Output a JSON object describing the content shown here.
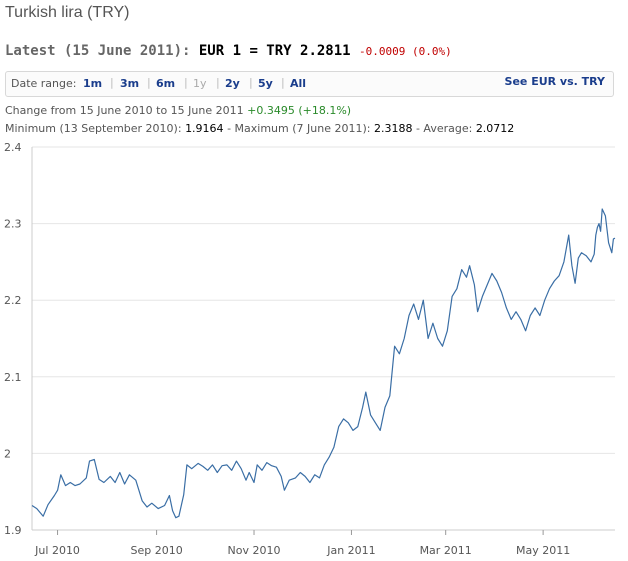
{
  "header": {
    "title": "Turkish lira (TRY)",
    "latest_prefix": "Latest (15 June 2011):",
    "latest_pair": "EUR 1 = TRY 2.2811",
    "latest_delta": "-0.0009 (0.0%)"
  },
  "range": {
    "label": "Date range:",
    "buttons": [
      "1m",
      "3m",
      "6m",
      "1y",
      "2y",
      "5y",
      "All"
    ],
    "disabled": "1y",
    "link": "See EUR vs. TRY"
  },
  "stats": {
    "change_label": "Change from 15 June 2010 to 15 June 2011",
    "change_value": "+0.3495 (+18.1%)",
    "min_label": "Minimum (13 September 2010):",
    "min_value": "1.9164",
    "max_label": "- Maximum (7 June 2011):",
    "max_value": "2.3188",
    "avg_label": "- Average:",
    "avg_value": "2.0712"
  },
  "colors": {
    "line": "#3a6ea5",
    "grid": "#e6e6e6",
    "positive": "#2a8a2a",
    "negative": "#c00000",
    "link": "#1a3d8c"
  },
  "chart_data": {
    "type": "line",
    "title": "",
    "xlabel": "",
    "ylabel": "",
    "ylim": [
      1.9,
      2.4
    ],
    "yticks": [
      "1.9",
      "2",
      "2.1",
      "2.2",
      "2.3",
      "2.4"
    ],
    "xticks": [
      "Jul 2010",
      "Sep 2010",
      "Nov 2010",
      "Jan 2011",
      "Mar 2011",
      "May 2011"
    ],
    "xtick_dates": [
      "2010-07-01",
      "2010-09-01",
      "2010-11-01",
      "2011-01-01",
      "2011-03-01",
      "2011-05-01"
    ],
    "xlim": [
      "2010-06-15",
      "2011-06-15"
    ],
    "grid": "horizontal",
    "series": [
      {
        "points": [
          [
            "2010-06-15",
            1.932
          ],
          [
            "2010-06-18",
            1.928
          ],
          [
            "2010-06-22",
            1.918
          ],
          [
            "2010-06-25",
            1.933
          ],
          [
            "2010-06-29",
            1.945
          ],
          [
            "2010-07-01",
            1.952
          ],
          [
            "2010-07-03",
            1.972
          ],
          [
            "2010-07-06",
            1.958
          ],
          [
            "2010-07-09",
            1.962
          ],
          [
            "2010-07-12",
            1.958
          ],
          [
            "2010-07-15",
            1.96
          ],
          [
            "2010-07-19",
            1.968
          ],
          [
            "2010-07-21",
            1.99
          ],
          [
            "2010-07-24",
            1.992
          ],
          [
            "2010-07-27",
            1.966
          ],
          [
            "2010-07-30",
            1.962
          ],
          [
            "2010-08-03",
            1.97
          ],
          [
            "2010-08-06",
            1.962
          ],
          [
            "2010-08-09",
            1.975
          ],
          [
            "2010-08-12",
            1.96
          ],
          [
            "2010-08-15",
            1.972
          ],
          [
            "2010-08-19",
            1.965
          ],
          [
            "2010-08-23",
            1.938
          ],
          [
            "2010-08-26",
            1.93
          ],
          [
            "2010-08-29",
            1.935
          ],
          [
            "2010-09-02",
            1.928
          ],
          [
            "2010-09-06",
            1.932
          ],
          [
            "2010-09-09",
            1.945
          ],
          [
            "2010-09-11",
            1.925
          ],
          [
            "2010-09-13",
            1.916
          ],
          [
            "2010-09-15",
            1.918
          ],
          [
            "2010-09-18",
            1.946
          ],
          [
            "2010-09-20",
            1.985
          ],
          [
            "2010-09-23",
            1.98
          ],
          [
            "2010-09-27",
            1.987
          ],
          [
            "2010-09-30",
            1.983
          ],
          [
            "2010-10-03",
            1.978
          ],
          [
            "2010-10-06",
            1.985
          ],
          [
            "2010-10-09",
            1.975
          ],
          [
            "2010-10-12",
            1.984
          ],
          [
            "2010-10-15",
            1.985
          ],
          [
            "2010-10-18",
            1.978
          ],
          [
            "2010-10-21",
            1.99
          ],
          [
            "2010-10-24",
            1.98
          ],
          [
            "2010-10-27",
            1.965
          ],
          [
            "2010-10-29",
            1.975
          ],
          [
            "2010-11-01",
            1.962
          ],
          [
            "2010-11-03",
            1.985
          ],
          [
            "2010-11-06",
            1.978
          ],
          [
            "2010-11-09",
            1.988
          ],
          [
            "2010-11-12",
            1.984
          ],
          [
            "2010-11-15",
            1.982
          ],
          [
            "2010-11-18",
            1.97
          ],
          [
            "2010-11-20",
            1.952
          ],
          [
            "2010-11-23",
            1.965
          ],
          [
            "2010-11-27",
            1.968
          ],
          [
            "2010-11-30",
            1.975
          ],
          [
            "2010-12-03",
            1.97
          ],
          [
            "2010-12-06",
            1.962
          ],
          [
            "2010-12-09",
            1.972
          ],
          [
            "2010-12-12",
            1.968
          ],
          [
            "2010-12-15",
            1.985
          ],
          [
            "2010-12-18",
            1.995
          ],
          [
            "2010-12-21",
            2.008
          ],
          [
            "2010-12-24",
            2.035
          ],
          [
            "2010-12-27",
            2.045
          ],
          [
            "2010-12-30",
            2.04
          ],
          [
            "2011-01-02",
            2.03
          ],
          [
            "2011-01-05",
            2.035
          ],
          [
            "2011-01-08",
            2.06
          ],
          [
            "2011-01-10",
            2.08
          ],
          [
            "2011-01-13",
            2.05
          ],
          [
            "2011-01-16",
            2.04
          ],
          [
            "2011-01-19",
            2.03
          ],
          [
            "2011-01-22",
            2.06
          ],
          [
            "2011-01-25",
            2.075
          ],
          [
            "2011-01-28",
            2.14
          ],
          [
            "2011-01-31",
            2.13
          ],
          [
            "2011-02-03",
            2.15
          ],
          [
            "2011-02-06",
            2.18
          ],
          [
            "2011-02-09",
            2.195
          ],
          [
            "2011-02-12",
            2.175
          ],
          [
            "2011-02-15",
            2.2
          ],
          [
            "2011-02-18",
            2.15
          ],
          [
            "2011-02-21",
            2.17
          ],
          [
            "2011-02-24",
            2.15
          ],
          [
            "2011-02-27",
            2.14
          ],
          [
            "2011-03-02",
            2.16
          ],
          [
            "2011-03-05",
            2.205
          ],
          [
            "2011-03-08",
            2.215
          ],
          [
            "2011-03-11",
            2.24
          ],
          [
            "2011-03-14",
            2.23
          ],
          [
            "2011-03-16",
            2.245
          ],
          [
            "2011-03-19",
            2.22
          ],
          [
            "2011-03-21",
            2.185
          ],
          [
            "2011-03-24",
            2.205
          ],
          [
            "2011-03-27",
            2.22
          ],
          [
            "2011-03-30",
            2.235
          ],
          [
            "2011-04-02",
            2.225
          ],
          [
            "2011-04-05",
            2.21
          ],
          [
            "2011-04-08",
            2.19
          ],
          [
            "2011-04-11",
            2.175
          ],
          [
            "2011-04-14",
            2.185
          ],
          [
            "2011-04-17",
            2.175
          ],
          [
            "2011-04-20",
            2.16
          ],
          [
            "2011-04-23",
            2.18
          ],
          [
            "2011-04-26",
            2.19
          ],
          [
            "2011-04-29",
            2.18
          ],
          [
            "2011-05-02",
            2.2
          ],
          [
            "2011-05-05",
            2.215
          ],
          [
            "2011-05-08",
            2.225
          ],
          [
            "2011-05-11",
            2.232
          ],
          [
            "2011-05-14",
            2.25
          ],
          [
            "2011-05-17",
            2.285
          ],
          [
            "2011-05-19",
            2.245
          ],
          [
            "2011-05-21",
            2.222
          ],
          [
            "2011-05-23",
            2.255
          ],
          [
            "2011-05-25",
            2.262
          ],
          [
            "2011-05-28",
            2.258
          ],
          [
            "2011-05-31",
            2.25
          ],
          [
            "2011-06-02",
            2.26
          ],
          [
            "2011-06-03",
            2.285
          ],
          [
            "2011-06-04",
            2.295
          ],
          [
            "2011-06-05",
            2.3
          ],
          [
            "2011-06-06",
            2.29
          ],
          [
            "2011-06-07",
            2.319
          ],
          [
            "2011-06-09",
            2.31
          ],
          [
            "2011-06-11",
            2.275
          ],
          [
            "2011-06-13",
            2.262
          ],
          [
            "2011-06-14",
            2.28
          ],
          [
            "2011-06-15",
            2.281
          ]
        ]
      }
    ]
  }
}
